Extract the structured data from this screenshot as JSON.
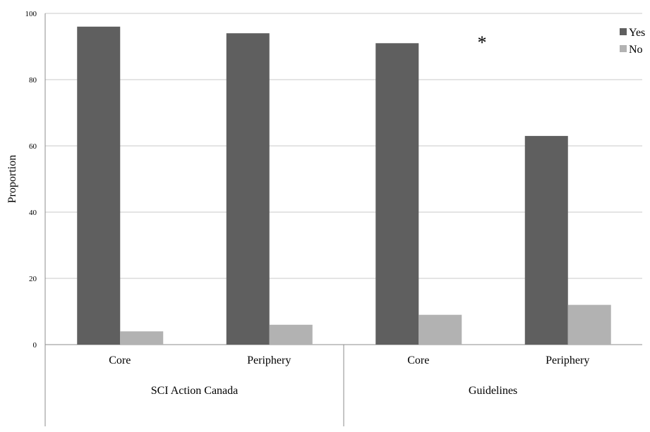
{
  "chart_data": {
    "type": "bar",
    "groups": [
      {
        "label": "SCI Action Canada",
        "categories": [
          "Core",
          "Periphery"
        ]
      },
      {
        "label": "Guidelines",
        "categories": [
          "Core",
          "Periphery"
        ]
      }
    ],
    "categories": [
      "Core",
      "Periphery",
      "Core",
      "Periphery"
    ],
    "series": [
      {
        "name": "Yes",
        "color": "#5f5f5f",
        "values": [
          96,
          94,
          91,
          63
        ]
      },
      {
        "name": "No",
        "color": "#b2b2b2",
        "values": [
          4,
          6,
          9,
          12
        ]
      }
    ],
    "ylabel": "Proportion",
    "ylim": [
      0,
      100
    ],
    "yticks": [
      0,
      20,
      40,
      60,
      80,
      100
    ],
    "grid": true,
    "legend": "top-right",
    "annotations": [
      {
        "text": "*",
        "near": "Guidelines"
      }
    ]
  }
}
